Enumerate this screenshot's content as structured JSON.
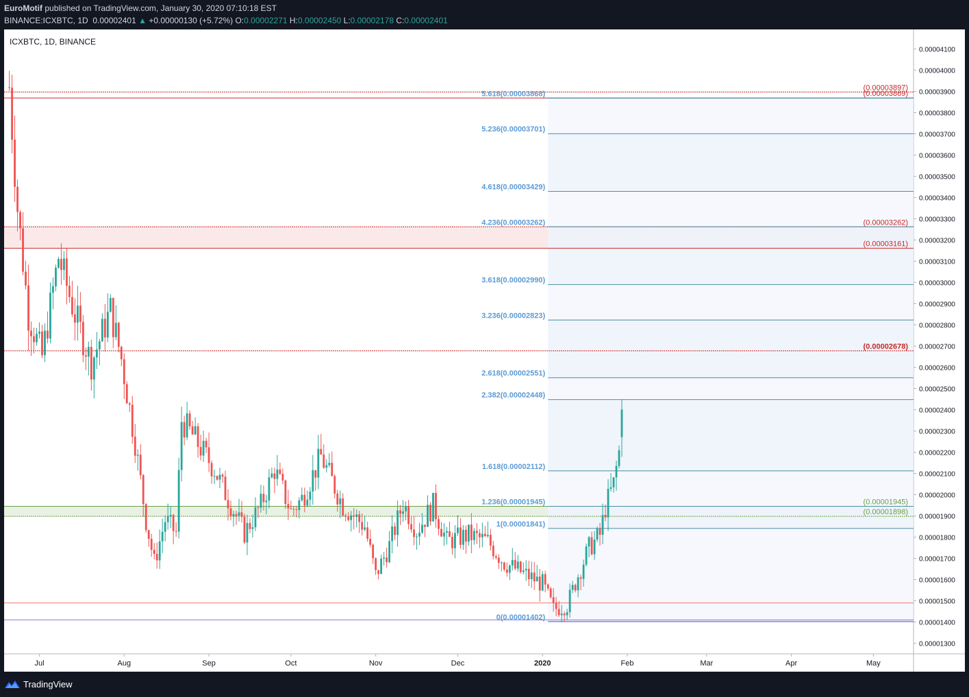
{
  "header": {
    "author": "EuroMotif",
    "published_text": "published on TradingView.com, January 30, 2020 07:10:18 EST",
    "symbol": "BINANCE:ICXBTC, 1D",
    "last": "0.00002401",
    "change": "+0.00000130 (+5.72%)",
    "o_label": "O:",
    "o": "0.00002271",
    "h_label": "H:",
    "h": "0.00002450",
    "l_label": "L:",
    "l": "0.00002178",
    "c_label": "C:",
    "c": "0.00002401"
  },
  "footer": {
    "brand": "TradingView"
  },
  "colors": {
    "up": "#26a69a",
    "down": "#ef5350",
    "fib": "#5b9bd5",
    "fib_line": "#4a90a4",
    "resistance": "#c62828",
    "support": "#6a9f48",
    "purple": "#6a5acd",
    "zone_red": "#fbe9e9",
    "zone_green": "#e8f1e3",
    "fib_zone": "#eef3fb"
  },
  "chart_data": {
    "type": "candlestick",
    "title": "ICXBTC, 1D, BINANCE",
    "ylim": [
      1.25e-05,
      4.3e-06
    ],
    "y_ticks": [
      "0.00001300",
      "0.00001400",
      "0.00001500",
      "0.00001600",
      "0.00001700",
      "0.00001800",
      "0.00001900",
      "0.00002000",
      "0.00002100",
      "0.00002200",
      "0.00002300",
      "0.00002400",
      "0.00002500",
      "0.00002600",
      "0.00002700",
      "0.00002800",
      "0.00002900",
      "0.00003000",
      "0.00003100",
      "0.00003200",
      "0.00003300",
      "0.00003400",
      "0.00003500",
      "0.00003600",
      "0.00003700",
      "0.00003800",
      "0.00003900",
      "0.00004000",
      "0.00004100"
    ],
    "x_labels": [
      "Jul",
      "Aug",
      "Sep",
      "Oct",
      "Nov",
      "Dec",
      "2020",
      "Feb",
      "Mar",
      "Apr",
      "May"
    ],
    "x_label_dates": [
      "2019-07-01",
      "2019-08-01",
      "2019-09-01",
      "2019-10-01",
      "2019-11-01",
      "2019-12-01",
      "2020-01-01",
      "2020-02-01",
      "2020-03-01",
      "2020-04-01",
      "2020-05-01"
    ],
    "bold_x_label": "2020",
    "fib_extension": [
      {
        "ratio": "0",
        "price": 1.402e-05,
        "label": "0(0.00001402)"
      },
      {
        "ratio": "1",
        "price": 1.841e-05,
        "label": "1(0.00001841)"
      },
      {
        "ratio": "1.236",
        "price": 1.945e-05,
        "label": "1.236(0.00001945)"
      },
      {
        "ratio": "1.618",
        "price": 2.112e-05,
        "label": "1.618(0.00002112)"
      },
      {
        "ratio": "2.382",
        "price": 2.448e-05,
        "label": "2.382(0.00002448)"
      },
      {
        "ratio": "2.618",
        "price": 2.551e-05,
        "label": "2.618(0.00002551)"
      },
      {
        "ratio": "3.236",
        "price": 2.823e-05,
        "label": "3.236(0.00002823)"
      },
      {
        "ratio": "3.618",
        "price": 2.99e-05,
        "label": "3.618(0.00002990)"
      },
      {
        "ratio": "4.236",
        "price": 3.262e-05,
        "label": "4.236(0.00003262)"
      },
      {
        "ratio": "4.618",
        "price": 3.429e-05,
        "label": "4.618(0.00003429)"
      },
      {
        "ratio": "5.236",
        "price": 3.701e-05,
        "label": "5.236(0.00003701)"
      },
      {
        "ratio": "5.618",
        "price": 3.868e-05,
        "label": "5.618(0.00003868)"
      }
    ],
    "fib_start_date": "2020-01-03",
    "horizontal_levels": [
      {
        "price": 3.897e-05,
        "label": "(0.00003897)",
        "color": "resistance",
        "bold": false
      },
      {
        "price": 3.869e-05,
        "label": "(0.00003869)",
        "color": "resistance",
        "bold": false
      },
      {
        "price": 3.262e-05,
        "label": "(0.00003262)",
        "color": "resistance",
        "bold": false
      },
      {
        "price": 3.161e-05,
        "label": "(0.00003161)",
        "color": "resistance",
        "bold": false
      },
      {
        "price": 2.678e-05,
        "label": "(0.00002678)",
        "color": "resistance",
        "bold": true
      },
      {
        "price": 1.945e-05,
        "label": "(0.00001945)",
        "color": "support",
        "bold": false
      },
      {
        "price": 1.898e-05,
        "label": "(0.00001898)",
        "color": "support",
        "bold": false
      }
    ],
    "extra_lines": [
      {
        "price": 1.49e-05,
        "color": "down"
      },
      {
        "price": 1.41e-05,
        "color": "purple"
      }
    ],
    "zones": [
      {
        "from": 3.262e-05,
        "to": 3.161e-05,
        "color": "zone_red"
      },
      {
        "from": 1.945e-05,
        "to": 1.898e-05,
        "color": "zone_green"
      }
    ],
    "anchors": [
      {
        "date": "2019-06-20",
        "price": 3.92e-05
      },
      {
        "date": "2019-06-23",
        "price": 3.35e-05
      },
      {
        "date": "2019-06-27",
        "price": 2.85e-05
      },
      {
        "date": "2019-07-02",
        "price": 2.65e-05
      },
      {
        "date": "2019-07-08",
        "price": 3.12e-05
      },
      {
        "date": "2019-07-14",
        "price": 2.85e-05
      },
      {
        "date": "2019-07-20",
        "price": 2.62e-05
      },
      {
        "date": "2019-07-27",
        "price": 2.87e-05
      },
      {
        "date": "2019-07-31",
        "price": 2.64e-05
      },
      {
        "date": "2019-08-05",
        "price": 2.25e-05
      },
      {
        "date": "2019-08-09",
        "price": 1.88e-05
      },
      {
        "date": "2019-08-12",
        "price": 1.68e-05
      },
      {
        "date": "2019-08-16",
        "price": 1.88e-05
      },
      {
        "date": "2019-08-20",
        "price": 1.82e-05
      },
      {
        "date": "2019-08-22",
        "price": 2.35e-05
      },
      {
        "date": "2019-08-26",
        "price": 2.28e-05
      },
      {
        "date": "2019-09-03",
        "price": 2.12e-05
      },
      {
        "date": "2019-09-08",
        "price": 1.98e-05
      },
      {
        "date": "2019-09-14",
        "price": 1.82e-05
      },
      {
        "date": "2019-09-20",
        "price": 1.95e-05
      },
      {
        "date": "2019-09-25",
        "price": 2.12e-05
      },
      {
        "date": "2019-10-01",
        "price": 1.92e-05
      },
      {
        "date": "2019-10-05",
        "price": 1.98e-05
      },
      {
        "date": "2019-10-12",
        "price": 2.18e-05
      },
      {
        "date": "2019-10-20",
        "price": 1.95e-05
      },
      {
        "date": "2019-10-28",
        "price": 1.85e-05
      },
      {
        "date": "2019-11-01",
        "price": 1.62e-05
      },
      {
        "date": "2019-11-06",
        "price": 1.76e-05
      },
      {
        "date": "2019-11-11",
        "price": 1.96e-05
      },
      {
        "date": "2019-11-16",
        "price": 1.83e-05
      },
      {
        "date": "2019-11-22",
        "price": 1.95e-05
      },
      {
        "date": "2019-11-27",
        "price": 1.78e-05
      },
      {
        "date": "2019-12-05",
        "price": 1.81e-05
      },
      {
        "date": "2019-12-12",
        "price": 1.78e-05
      },
      {
        "date": "2019-12-18",
        "price": 1.68e-05
      },
      {
        "date": "2019-12-25",
        "price": 1.63e-05
      },
      {
        "date": "2020-01-01",
        "price": 1.58e-05
      },
      {
        "date": "2020-01-05",
        "price": 1.46e-05
      },
      {
        "date": "2020-01-10",
        "price": 1.48e-05
      },
      {
        "date": "2020-01-14",
        "price": 1.62e-05
      },
      {
        "date": "2020-01-18",
        "price": 1.75e-05
      },
      {
        "date": "2020-01-22",
        "price": 1.81e-05
      },
      {
        "date": "2020-01-24",
        "price": 1.94e-05
      },
      {
        "date": "2020-01-27",
        "price": 2.05e-05
      },
      {
        "date": "2020-01-29",
        "price": 2.2e-05
      },
      {
        "date": "2020-01-30",
        "price": 2.401e-05
      }
    ],
    "last_candle": {
      "o": 2.271e-05,
      "h": 2.45e-05,
      "l": 2.178e-05,
      "c": 2.401e-05
    }
  }
}
